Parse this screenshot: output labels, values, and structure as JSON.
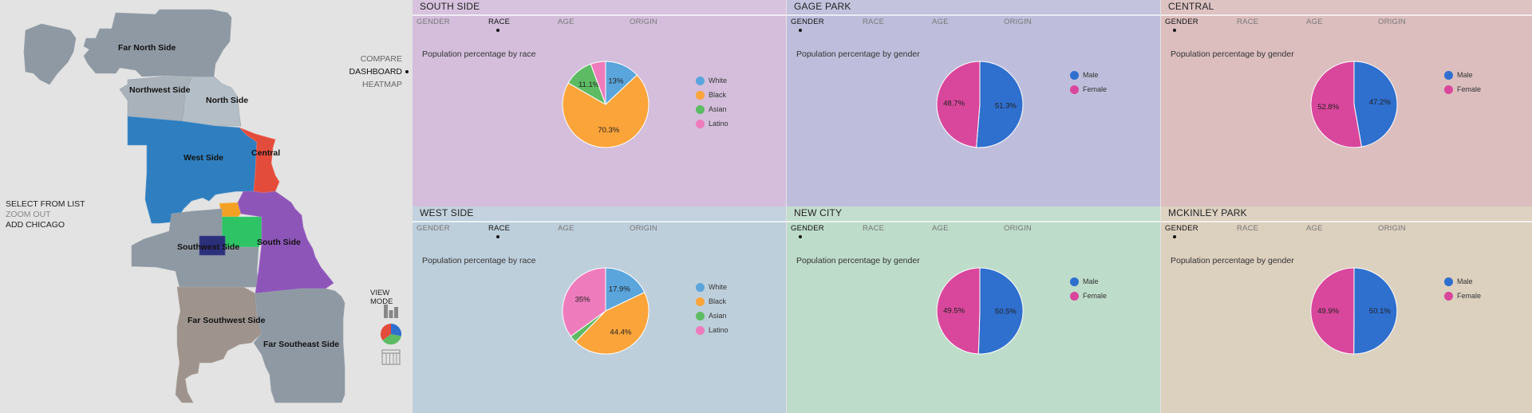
{
  "map": {
    "regions": [
      {
        "name": "Far North Side"
      },
      {
        "name": "Northwest Side"
      },
      {
        "name": "North Side"
      },
      {
        "name": "West Side"
      },
      {
        "name": "Central"
      },
      {
        "name": "Southwest Side"
      },
      {
        "name": "South Side"
      },
      {
        "name": "Far Southwest Side"
      },
      {
        "name": "Far Southeast Side"
      }
    ],
    "colors": {
      "gray": "#8e99a3",
      "light_gray": "#a9b2ba",
      "gray_blue": "#b4bec7",
      "blue": "#2f7fc0",
      "red": "#e34c3b",
      "purple": "#8e55b9",
      "green": "#2ec466",
      "orange": "#f3a125",
      "navy": "#2c2f7a",
      "taupe": "#9e948d"
    }
  },
  "left_menu": {
    "select_from_list": "SELECT FROM LIST",
    "zoom_out": "ZOOM OUT",
    "add_chicago": "ADD CHICAGO"
  },
  "nav": {
    "compare": "COMPARE",
    "dashboard": "DASHBOARD",
    "heatmap": "HEATMAP"
  },
  "view_mode": {
    "label": "VIEW MODE",
    "icons": [
      "bar-chart-icon",
      "pie-chart-icon",
      "table-icon"
    ]
  },
  "tabs": [
    "GENDER",
    "RACE",
    "AGE",
    "ORIGIN"
  ],
  "panels": [
    {
      "title": "SOUTH SIDE",
      "bg": "#d4bedc",
      "active_tab": 1,
      "chart_data": {
        "type": "pie",
        "title": "Population percentage by race",
        "labels": [
          "White",
          "Black",
          "Asian",
          "Latino"
        ],
        "values": [
          13.0,
          70.3,
          11.1,
          5.6
        ],
        "colors": [
          "#5aa5dc",
          "#fba43a",
          "#5dbb63",
          "#ee7cbc"
        ],
        "value_labels": [
          "13%",
          "70.3%",
          "11.1%",
          ""
        ]
      }
    },
    {
      "title": "GAGE PARK",
      "bg": "#bebedc",
      "active_tab": 0,
      "chart_data": {
        "type": "pie",
        "title": "Population percentage by gender",
        "labels": [
          "Male",
          "Female"
        ],
        "values": [
          51.3,
          48.7
        ],
        "colors": [
          "#2f6fce",
          "#d9479c"
        ],
        "value_labels": [
          "51.3%",
          "48.7%"
        ]
      }
    },
    {
      "title": "CENTRAL",
      "bg": "#dcbebe",
      "active_tab": 0,
      "chart_data": {
        "type": "pie",
        "title": "Population percentage by gender",
        "labels": [
          "Male",
          "Female"
        ],
        "values": [
          47.2,
          52.8
        ],
        "colors": [
          "#2f6fce",
          "#d9479c"
        ],
        "value_labels": [
          "47.2%",
          "52.8%"
        ]
      }
    },
    {
      "title": "WEST SIDE",
      "bg": "#becfdc",
      "active_tab": 1,
      "chart_data": {
        "type": "pie",
        "title": "Population percentage by race",
        "labels": [
          "White",
          "Black",
          "Asian",
          "Latino"
        ],
        "values": [
          17.9,
          44.4,
          2.7,
          35.0
        ],
        "colors": [
          "#5aa5dc",
          "#fba43a",
          "#5dbb63",
          "#ee7cbc"
        ],
        "value_labels": [
          "17.9%",
          "44.4%",
          "",
          "35%"
        ]
      }
    },
    {
      "title": "NEW CITY",
      "bg": "#bedcca",
      "active_tab": 0,
      "chart_data": {
        "type": "pie",
        "title": "Population percentage by gender",
        "labels": [
          "Male",
          "Female"
        ],
        "values": [
          50.5,
          49.5
        ],
        "colors": [
          "#2f6fce",
          "#d9479c"
        ],
        "value_labels": [
          "50.5%",
          "49.5%"
        ]
      }
    },
    {
      "title": "MCKINLEY PARK",
      "bg": "#dcd0be",
      "active_tab": 0,
      "chart_data": {
        "type": "pie",
        "title": "Population percentage by gender",
        "labels": [
          "Male",
          "Female"
        ],
        "values": [
          50.1,
          49.9
        ],
        "colors": [
          "#2f6fce",
          "#d9479c"
        ],
        "value_labels": [
          "50.1%",
          "49.9%"
        ]
      }
    }
  ]
}
